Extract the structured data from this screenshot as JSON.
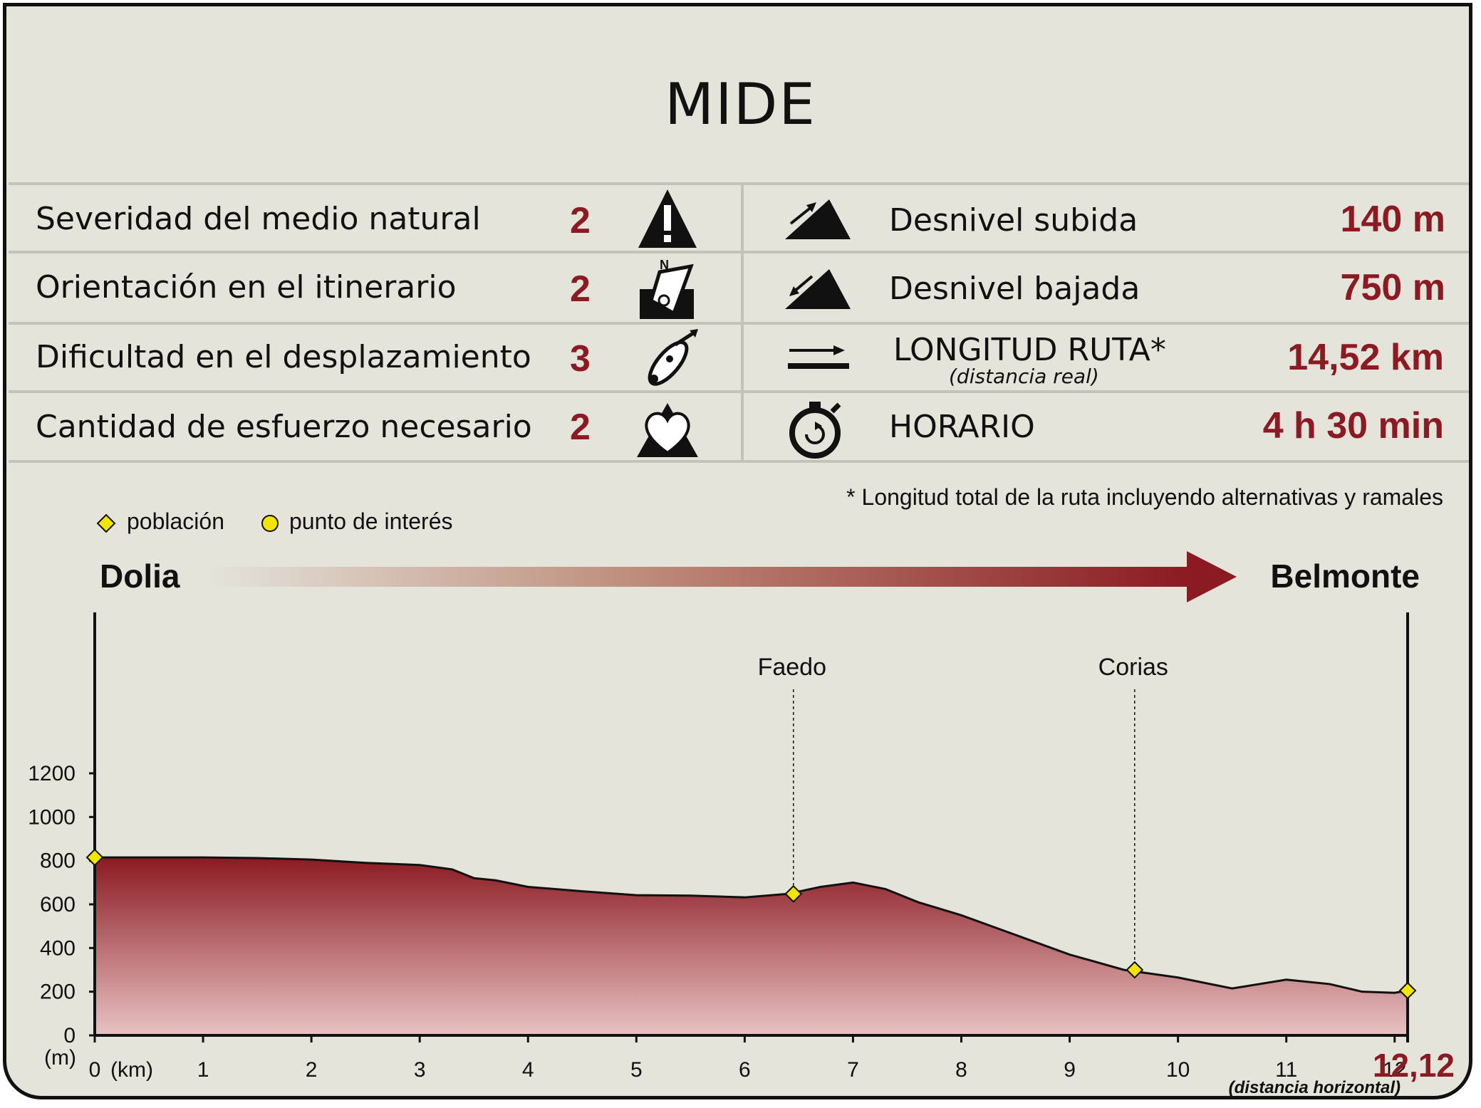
{
  "title": "MIDE",
  "mide_rows": [
    {
      "label": "Severidad del medio natural",
      "level": "2",
      "icon": "warning-icon"
    },
    {
      "label": "Orientación en el itinerario",
      "level": "2",
      "icon": "compass-orientation-icon"
    },
    {
      "label": "Dificultad en el desplazamiento",
      "level": "3",
      "icon": "footprint-icon"
    },
    {
      "label": "Cantidad de esfuerzo necesario",
      "level": "2",
      "icon": "heart-effort-icon"
    }
  ],
  "stats": {
    "ascent": {
      "label": "Desnivel subida",
      "value": "140 m",
      "icon": "ascent-icon"
    },
    "descent": {
      "label": "Desnivel bajada",
      "value": "750 m",
      "icon": "descent-icon"
    },
    "length": {
      "label": "LONGITUD RUTA*",
      "sublabel": "(distancia real)",
      "value": "14,52 km",
      "icon": "distance-arrow-icon"
    },
    "time": {
      "label": "HORARIO",
      "value": "4 h 30 min",
      "icon": "stopwatch-icon"
    }
  },
  "footnote": "* Longitud total de la ruta incluyendo alternativas y ramales",
  "legend": {
    "town": "población",
    "poi": "punto de interés"
  },
  "route": {
    "start": "Dolia",
    "end": "Belmonte"
  },
  "colors": {
    "accent": "#8b1a22",
    "background": "#e4e4db",
    "marker": "#f2e600"
  },
  "chart_data": {
    "type": "area",
    "xlabel": "(km)",
    "ylabel": "(m)",
    "x_note": "(distancia horizontal)",
    "total_distance_label": "12,12",
    "xlim": [
      0,
      12.12
    ],
    "ylim": [
      0,
      1200
    ],
    "x_ticks": [
      0,
      1,
      2,
      3,
      4,
      5,
      6,
      7,
      8,
      9,
      10,
      11,
      12
    ],
    "y_ticks": [
      0,
      200,
      400,
      600,
      800,
      1000,
      1200
    ],
    "x": [
      0,
      0.5,
      1,
      1.5,
      2,
      2.5,
      3,
      3.3,
      3.5,
      3.7,
      4,
      4.5,
      5,
      5.5,
      6,
      6.4,
      6.7,
      7,
      7.3,
      7.6,
      8,
      8.5,
      9,
      9.5,
      10,
      10.5,
      11,
      11.4,
      11.7,
      12,
      12.12
    ],
    "y": [
      815,
      815,
      815,
      812,
      805,
      790,
      780,
      760,
      720,
      710,
      680,
      660,
      642,
      640,
      632,
      648,
      680,
      700,
      670,
      610,
      550,
      460,
      370,
      300,
      265,
      215,
      255,
      235,
      200,
      195,
      205
    ],
    "markers": [
      {
        "km": 0,
        "elev": 815,
        "type": "población",
        "name": ""
      },
      {
        "km": 6.45,
        "elev": 648,
        "type": "población",
        "name": "Faedo"
      },
      {
        "km": 9.6,
        "elev": 300,
        "type": "población",
        "name": "Corias"
      },
      {
        "km": 12.12,
        "elev": 205,
        "type": "población",
        "name": ""
      }
    ]
  }
}
